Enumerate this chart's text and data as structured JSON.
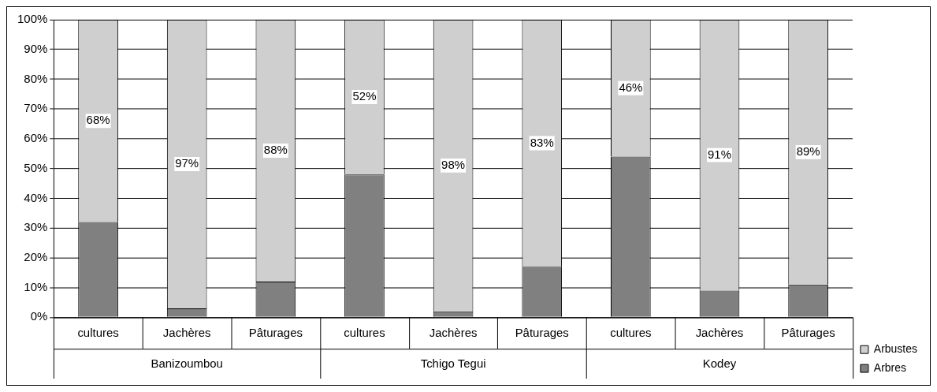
{
  "chart_data": {
    "type": "bar",
    "stacked": true,
    "categories": [
      "cultures",
      "Jachères",
      "Pâturages",
      "cultures",
      "Jachères",
      "Pâturages",
      "cultures",
      "Jachères",
      "Pâturages"
    ],
    "series": [
      {
        "name": "Arbres",
        "color": "#808080",
        "values": [
          32,
          3,
          12,
          48,
          2,
          17,
          54,
          9,
          11
        ]
      },
      {
        "name": "Arbustes",
        "color": "#cfcfcf",
        "values": [
          68,
          97,
          88,
          52,
          98,
          83,
          46,
          91,
          89
        ],
        "value_labels": [
          "68%",
          "97%",
          "88%",
          "52%",
          "98%",
          "83%",
          "46%",
          "91%",
          "89%"
        ]
      }
    ],
    "ylim": [
      0,
      100
    ],
    "yticks": [
      {
        "value": 0,
        "label": "0%"
      },
      {
        "value": 10,
        "label": "10%"
      },
      {
        "value": 20,
        "label": "20%"
      },
      {
        "value": 30,
        "label": "30%"
      },
      {
        "value": 40,
        "label": "40%"
      },
      {
        "value": 50,
        "label": "50%"
      },
      {
        "value": 60,
        "label": "60%"
      },
      {
        "value": 70,
        "label": "70%"
      },
      {
        "value": 80,
        "label": "80%"
      },
      {
        "value": 90,
        "label": "90%"
      },
      {
        "value": 100,
        "label": "100%"
      }
    ],
    "grid": "y",
    "legend": "bottom right",
    "annotations": [
      "Banizoumbou",
      "Tchigo Tegui",
      "Kodey"
    ]
  }
}
